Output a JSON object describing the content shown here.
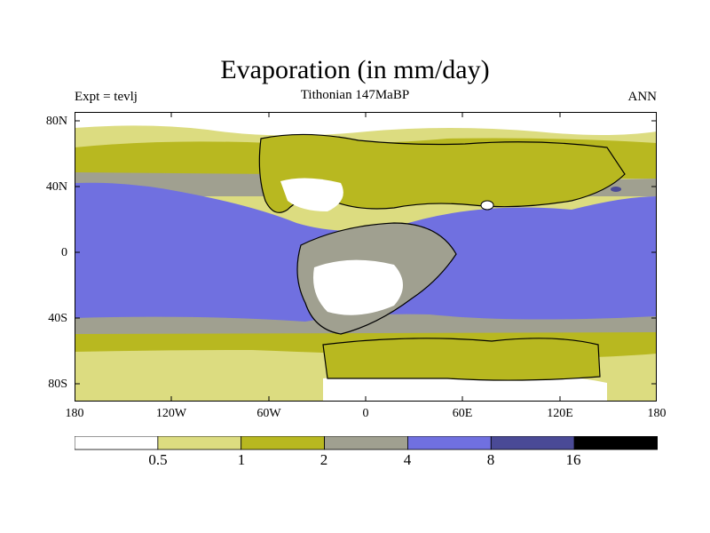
{
  "title": "Evaporation (in mm/day)",
  "subtitle": "Tithonian 147MaBP",
  "left_label": "Expt = tevlj",
  "right_label": "ANN",
  "axes": {
    "y_ticks": [
      "80N",
      "40N",
      "0",
      "40S",
      "80S"
    ],
    "x_ticks": [
      "180",
      "120W",
      "60W",
      "0",
      "60E",
      "120E",
      "180"
    ]
  },
  "colorbar": {
    "levels": [
      "0.5",
      "1",
      "2",
      "4",
      "8",
      "16"
    ],
    "colors": [
      "#ffffff",
      "#dcdc80",
      "#b8b820",
      "#a0a090",
      "#7070e0",
      "#4a4a96",
      "#000000"
    ]
  }
}
